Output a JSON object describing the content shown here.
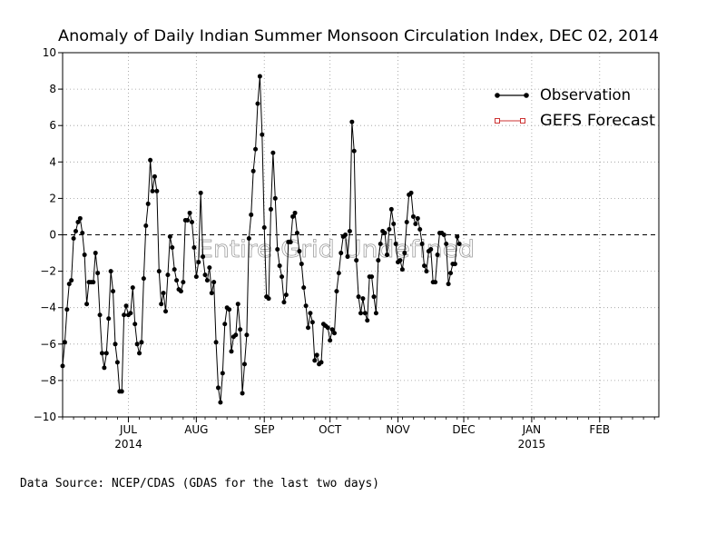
{
  "chart_data": {
    "type": "line",
    "title": "Anomaly of Daily Indian Summer Monsoon Circulation Index, DEC 02, 2014",
    "ylim": [
      -10,
      10
    ],
    "y_ticks": [
      10,
      8,
      6,
      4,
      2,
      0,
      -2,
      -4,
      -6,
      -8,
      -10
    ],
    "x_range": [
      "2014-06-01",
      "2015-02-28"
    ],
    "x_month_ticks": [
      {
        "date": "2014-07-01",
        "label": "JUL",
        "year": "2014"
      },
      {
        "date": "2014-08-01",
        "label": "AUG",
        "year": ""
      },
      {
        "date": "2014-09-01",
        "label": "SEP",
        "year": ""
      },
      {
        "date": "2014-10-01",
        "label": "OCT",
        "year": ""
      },
      {
        "date": "2014-11-01",
        "label": "NOV",
        "year": ""
      },
      {
        "date": "2014-12-01",
        "label": "DEC",
        "year": ""
      },
      {
        "date": "2015-01-01",
        "label": "JAN",
        "year": "2015"
      },
      {
        "date": "2015-02-01",
        "label": "FEB",
        "year": ""
      }
    ],
    "zero_line": "dashed",
    "grid": "dotted",
    "legend_position": "top-right",
    "watermark": "Entire Grid Undefined",
    "series": [
      {
        "name": "Observation",
        "color": "#000000",
        "marker": "filled-circle",
        "start_date": "2014-06-01",
        "step_days": 1,
        "values": [
          -7.2,
          -5.9,
          -4.1,
          -2.7,
          -2.5,
          -0.2,
          0.2,
          0.7,
          0.9,
          0.1,
          -1.1,
          -3.8,
          -2.6,
          -2.6,
          -2.6,
          -1.0,
          -2.1,
          -4.4,
          -6.5,
          -7.3,
          -6.5,
          -4.6,
          -2.0,
          -3.1,
          -6.0,
          -7.0,
          -8.6,
          -8.6,
          -4.4,
          -3.9,
          -4.4,
          -4.3,
          -2.9,
          -4.9,
          -6.0,
          -6.5,
          -5.9,
          -2.4,
          0.5,
          1.7,
          4.1,
          2.4,
          3.2,
          2.4,
          -2.0,
          -3.8,
          -3.2,
          -4.2,
          -2.2,
          -0.1,
          -0.7,
          -1.9,
          -2.5,
          -3.0,
          -3.1,
          -2.6,
          0.8,
          0.8,
          1.2,
          0.7,
          -0.7,
          -2.3,
          -1.5,
          2.3,
          -1.2,
          -2.2,
          -2.5,
          -1.8,
          -3.2,
          -2.6,
          -5.9,
          -8.4,
          -9.2,
          -7.6,
          -4.9,
          -4.0,
          -4.1,
          -6.4,
          -5.6,
          -5.5,
          -3.8,
          -5.2,
          -8.7,
          -7.1,
          -5.5,
          -0.2,
          1.1,
          3.5,
          4.7,
          7.2,
          8.7,
          5.5,
          0.4,
          -3.4,
          -3.5,
          1.4,
          4.5,
          2.0,
          -0.8,
          -1.7,
          -2.3,
          -3.7,
          -3.3,
          -0.4,
          -0.4,
          1.0,
          1.2,
          0.1,
          -0.9,
          -1.6,
          -2.9,
          -3.9,
          -5.1,
          -4.3,
          -4.8,
          -6.9,
          -6.6,
          -7.1,
          -7.0,
          -4.9,
          -5.0,
          -5.1,
          -5.8,
          -5.2,
          -5.4,
          -3.1,
          -2.1,
          -1.0,
          -0.1,
          0.0,
          -1.2,
          0.2,
          6.2,
          4.6,
          -1.4,
          -3.4,
          -4.3,
          -3.5,
          -4.3,
          -4.7,
          -2.3,
          -2.3,
          -3.4,
          -4.3,
          -1.4,
          -0.5,
          0.2,
          0.1,
          -1.1,
          0.3,
          1.4,
          0.6,
          -0.5,
          -1.5,
          -1.4,
          -1.9,
          -1.0,
          0.7,
          2.2,
          2.3,
          1.0,
          0.6,
          0.9,
          0.3,
          -0.5,
          -1.7,
          -2.0,
          -0.9,
          -0.8,
          -2.6,
          -2.6,
          -1.1,
          0.1,
          0.1,
          0.0,
          -0.5,
          -2.7,
          -2.1,
          -1.6,
          -1.6,
          -0.1,
          -0.5
        ]
      },
      {
        "name": "GEFS Forecast",
        "color": "#cc3333",
        "marker": "open-square",
        "values": []
      }
    ]
  },
  "footer": {
    "data_source": "Data Source:  NCEP/CDAS (GDAS for the last two days)"
  }
}
